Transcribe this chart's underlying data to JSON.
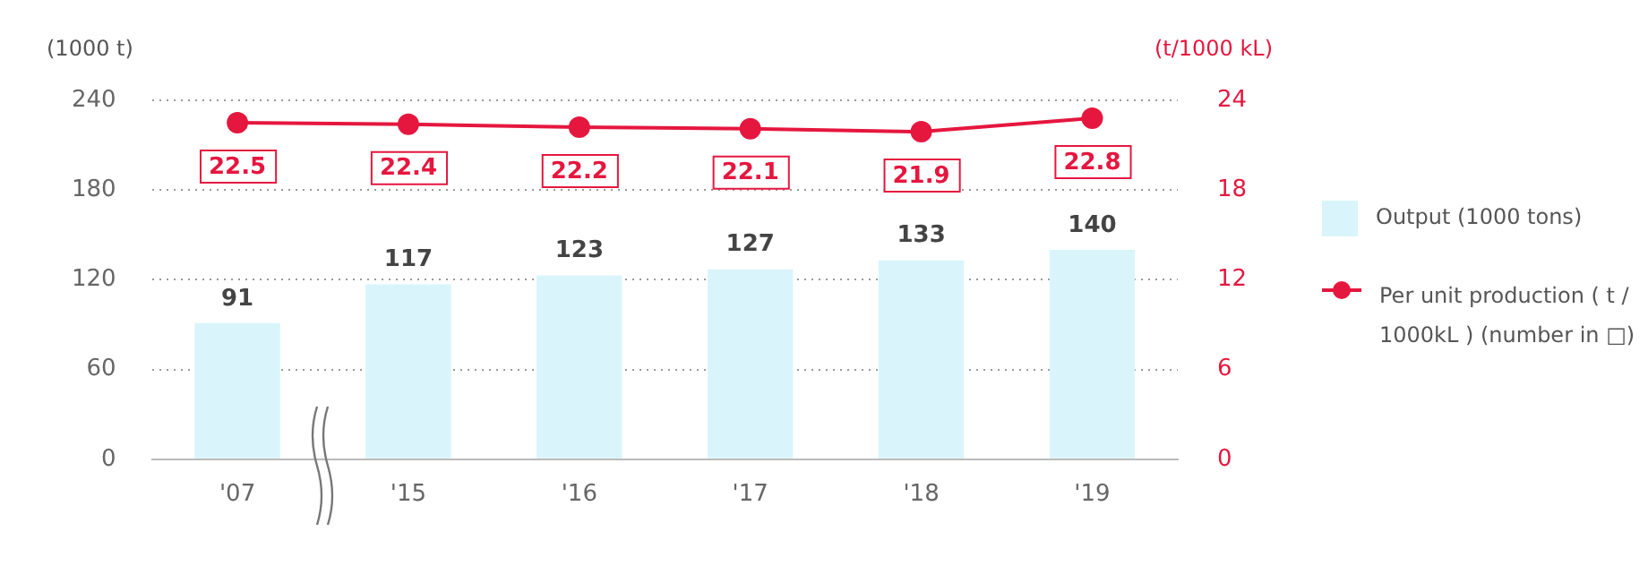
{
  "chart_data": {
    "type": "bar",
    "categories": [
      "'07",
      "'15",
      "'16",
      "'17",
      "'18",
      "'19"
    ],
    "series": [
      {
        "name": "Output (1000 tons)",
        "color": "#d9f5fb",
        "values": [
          91,
          117,
          123,
          127,
          133,
          140
        ]
      },
      {
        "name": "Per unit production ( t / 1000kL ) (number in □)",
        "type": "line",
        "axis": "y2",
        "color": "#e5173f",
        "values": [
          22.5,
          22.4,
          22.2,
          22.1,
          21.9,
          22.8
        ]
      }
    ],
    "ylabel": "(1000 t)",
    "y2label": "(t/1000 kL)",
    "ylim": [
      0,
      240
    ],
    "yticks": [
      0,
      60,
      120,
      180,
      240
    ],
    "y2lim": [
      0,
      24
    ],
    "y2ticks": [
      0,
      6,
      12,
      18,
      24
    ],
    "grid": "y",
    "legend": "right",
    "marker": "circle",
    "line_style": "solid",
    "data_labels": true
  }
}
